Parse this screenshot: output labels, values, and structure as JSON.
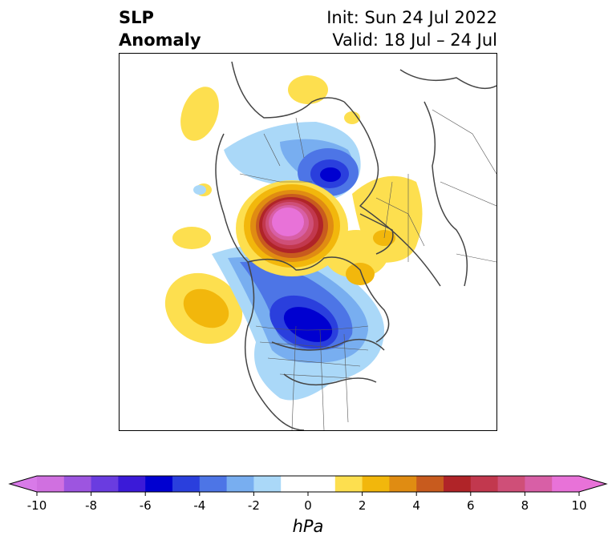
{
  "title": {
    "line1": "SLP",
    "line2": "Anomaly",
    "init": "Init: Sun 24 Jul 2022",
    "valid": "Valid: 18 Jul – 24 Jul"
  },
  "colorbar": {
    "unit": "hPa",
    "min": -10,
    "max": 10,
    "step": 1,
    "extend": "both",
    "tick_labels": [
      "-10",
      "-8",
      "-6",
      "-4",
      "-2",
      "0",
      "2",
      "4",
      "6",
      "8",
      "10"
    ],
    "colors": [
      "#d070e0",
      "#9d55e0",
      "#6a3ce0",
      "#3b1ad8",
      "#0000d0",
      "#2a3fdd",
      "#4d75e6",
      "#78aef0",
      "#aad8f8",
      "#ffffff",
      "#ffffff",
      "#fddf4f",
      "#f2b70c",
      "#e08c12",
      "#c85b1e",
      "#b02428",
      "#c2384e",
      "#cf4f78",
      "#d85fa6",
      "#e872d8"
    ],
    "under_color": "#d87ae8",
    "over_color": "#e872d8"
  },
  "map": {
    "projection": "north polar stereographic",
    "region": "Northern Hemisphere",
    "features": [
      {
        "type": "positive",
        "peak": 10,
        "location": "Beaufort Sea / Arctic north of Alaska"
      },
      {
        "type": "negative",
        "peak": -6,
        "location": "Hudson Bay / central Canada"
      },
      {
        "type": "negative",
        "peak": -6,
        "location": "Barents Sea / northern Scandinavia"
      },
      {
        "type": "positive",
        "peak": 2,
        "location": "Eastern Europe / western Russia"
      },
      {
        "type": "positive",
        "peak": 3,
        "location": "North Pacific"
      }
    ]
  }
}
